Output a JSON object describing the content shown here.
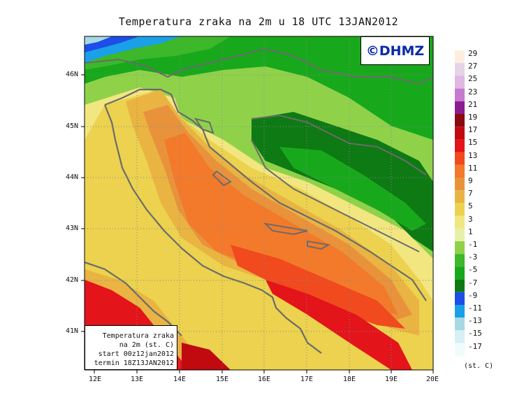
{
  "title": "Temperatura zraka na 2m u 18 UTC 13JAN2012",
  "logo_text": "©DHMZ",
  "info_box": {
    "line1": "Temperatura zraka",
    "line2": "na 2m (st. C)",
    "line3": "start 00z12jan2012",
    "line4": "termin 18Z13JAN2012"
  },
  "lat_labels": [
    "46N",
    "45N",
    "44N",
    "43N",
    "42N",
    "41N"
  ],
  "lon_labels": [
    "12E",
    "13E",
    "14E",
    "15E",
    "16E",
    "17E",
    "18E",
    "19E",
    "20E"
  ],
  "colorbar": {
    "unit": "(st. C)",
    "levels": [
      {
        "label": "29",
        "color": "#fdeee0"
      },
      {
        "label": "27",
        "color": "#e6d3e6"
      },
      {
        "label": "25",
        "color": "#e0b8e2"
      },
      {
        "label": "23",
        "color": "#c57ad0"
      },
      {
        "label": "21",
        "color": "#8a1c8f"
      },
      {
        "label": "19",
        "color": "#8a0a10"
      },
      {
        "label": "17",
        "color": "#c00a10"
      },
      {
        "label": "15",
        "color": "#e3141a"
      },
      {
        "label": "13",
        "color": "#f04a1e"
      },
      {
        "label": "11",
        "color": "#f37a2a"
      },
      {
        "label": "9",
        "color": "#e8933c"
      },
      {
        "label": "7",
        "color": "#eab442"
      },
      {
        "label": "5",
        "color": "#ecd24e"
      },
      {
        "label": "3",
        "color": "#f1e680"
      },
      {
        "label": "1",
        "color": "#e8f0a8"
      },
      {
        "label": "-1",
        "color": "#8fd24a"
      },
      {
        "label": "-3",
        "color": "#3cb82a"
      },
      {
        "label": "-5",
        "color": "#18a81c"
      },
      {
        "label": "-7",
        "color": "#0e7a14"
      },
      {
        "label": "-9",
        "color": "#1e4ee8"
      },
      {
        "label": "-11",
        "color": "#1aa0e8"
      },
      {
        "label": "-13",
        "color": "#a8d8e4"
      },
      {
        "label": "-15",
        "color": "#d6f0f4"
      },
      {
        "label": "-17",
        "color": "#f2fbfc"
      }
    ]
  }
}
